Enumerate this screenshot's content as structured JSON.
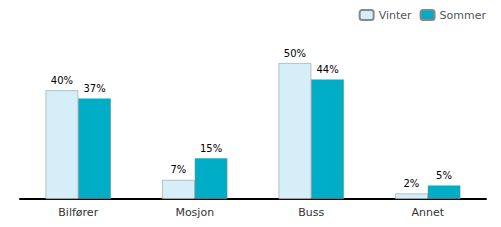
{
  "chart_data": {
    "type": "bar",
    "categories": [
      "Bilfører",
      "Mosjon",
      "Buss",
      "Annet"
    ],
    "series": [
      {
        "name": "Vinter",
        "color": "#d6eef8",
        "values": [
          40,
          7,
          50,
          2
        ],
        "value_labels": [
          "40%",
          "7%",
          "50%",
          "2%"
        ]
      },
      {
        "name": "Sommer",
        "color": "#00adc6",
        "values": [
          37,
          15,
          44,
          5
        ],
        "value_labels": [
          "37%",
          "15%",
          "44%",
          "5%"
        ]
      }
    ],
    "ylim": [
      0,
      60
    ],
    "data_labels": true,
    "tick_labels": "x",
    "grid": false,
    "legend": "upper right"
  }
}
